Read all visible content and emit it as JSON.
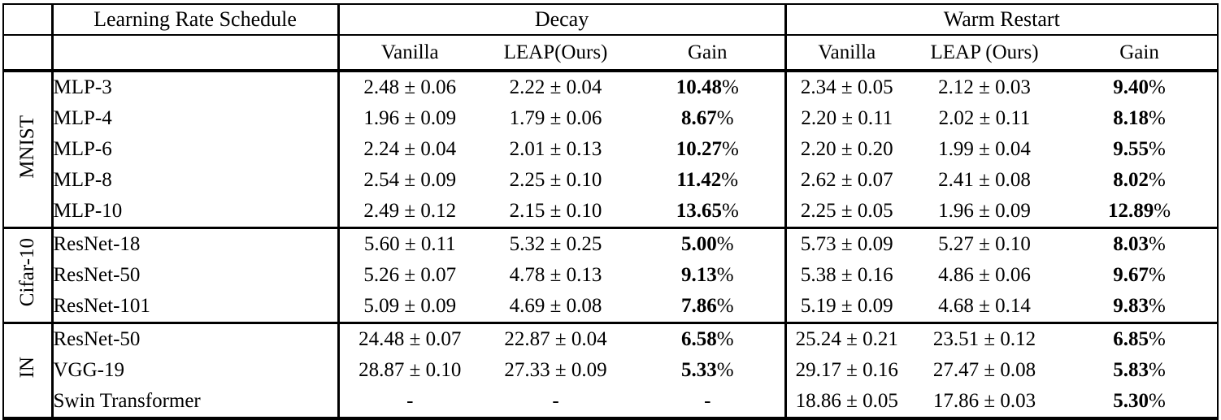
{
  "table": {
    "header": {
      "schedule": "Learning Rate Schedule",
      "decay": "Decay",
      "warm_restart": "Warm Restart"
    },
    "subheader": {
      "vanilla_decay": "Vanilla",
      "leap_decay": "LEAP(Ours)",
      "gain_decay": "Gain",
      "vanilla_wr": "Vanilla",
      "leap_wr": "LEAP (Ours)",
      "gain_wr": "Gain"
    },
    "percent_suffix": "%",
    "empty_value": "-",
    "text_color": "#000000",
    "background_color": "#ffffff",
    "sections": [
      {
        "dataset": "MNIST",
        "rows": [
          {
            "model": "MLP-3",
            "decay": {
              "vanilla": "2.48 ± 0.06",
              "leap": "2.22 ± 0.04",
              "gain": "10.48"
            },
            "warm_restart": {
              "vanilla": "2.34 ± 0.05",
              "leap": "2.12 ± 0.03",
              "gain": "9.40"
            }
          },
          {
            "model": "MLP-4",
            "decay": {
              "vanilla": "1.96 ± 0.09",
              "leap": "1.79 ± 0.06",
              "gain": "8.67"
            },
            "warm_restart": {
              "vanilla": "2.20 ± 0.11",
              "leap": "2.02 ± 0.11",
              "gain": "8.18"
            }
          },
          {
            "model": "MLP-6",
            "decay": {
              "vanilla": "2.24 ± 0.04",
              "leap": "2.01 ± 0.13",
              "gain": "10.27"
            },
            "warm_restart": {
              "vanilla": "2.20 ± 0.20",
              "leap": "1.99 ± 0.04",
              "gain": "9.55"
            }
          },
          {
            "model": "MLP-8",
            "decay": {
              "vanilla": "2.54 ± 0.09",
              "leap": "2.25 ± 0.10",
              "gain": "11.42"
            },
            "warm_restart": {
              "vanilla": "2.62 ± 0.07",
              "leap": "2.41 ± 0.08",
              "gain": "8.02"
            }
          },
          {
            "model": "MLP-10",
            "decay": {
              "vanilla": "2.49 ± 0.12",
              "leap": "2.15 ± 0.10",
              "gain": "13.65"
            },
            "warm_restart": {
              "vanilla": "2.25 ± 0.05",
              "leap": "1.96 ± 0.09",
              "gain": "12.89"
            }
          }
        ]
      },
      {
        "dataset": "Cifar-10",
        "rows": [
          {
            "model": "ResNet-18",
            "decay": {
              "vanilla": "5.60 ± 0.11",
              "leap": "5.32 ± 0.25",
              "gain": "5.00"
            },
            "warm_restart": {
              "vanilla": "5.73 ± 0.09",
              "leap": "5.27 ± 0.10",
              "gain": "8.03"
            }
          },
          {
            "model": "ResNet-50",
            "decay": {
              "vanilla": "5.26 ± 0.07",
              "leap": "4.78 ± 0.13",
              "gain": "9.13"
            },
            "warm_restart": {
              "vanilla": "5.38 ± 0.16",
              "leap": "4.86 ± 0.06",
              "gain": "9.67"
            }
          },
          {
            "model": "ResNet-101",
            "decay": {
              "vanilla": "5.09 ± 0.09",
              "leap": "4.69 ± 0.08",
              "gain": "7.86"
            },
            "warm_restart": {
              "vanilla": "5.19 ± 0.09",
              "leap": "4.68 ± 0.14",
              "gain": "9.83"
            }
          }
        ]
      },
      {
        "dataset": "IN",
        "rows": [
          {
            "model": "ResNet-50",
            "decay": {
              "vanilla": "24.48 ± 0.07",
              "leap": "22.87 ± 0.04",
              "gain": "6.58"
            },
            "warm_restart": {
              "vanilla": "25.24 ± 0.21",
              "leap": "23.51 ± 0.12",
              "gain": "6.85"
            }
          },
          {
            "model": "VGG-19",
            "decay": {
              "vanilla": "28.87 ± 0.10",
              "leap": "27.33 ± 0.09",
              "gain": "5.33"
            },
            "warm_restart": {
              "vanilla": "29.17 ± 0.16",
              "leap": "27.47 ± 0.08",
              "gain": "5.83"
            }
          },
          {
            "model": "Swin Transformer",
            "decay": {
              "vanilla": "-",
              "leap": "-",
              "gain": "-"
            },
            "warm_restart": {
              "vanilla": "18.86 ± 0.05",
              "leap": "17.86 ± 0.03",
              "gain": "5.30"
            }
          }
        ]
      }
    ]
  }
}
